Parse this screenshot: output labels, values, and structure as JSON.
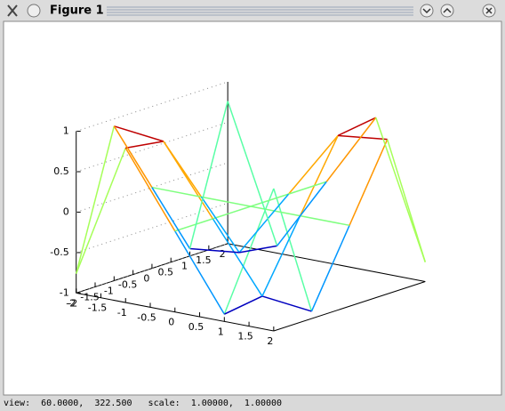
{
  "window": {
    "title": "Figure 1",
    "status": "view:  60.0000,  322.500   scale:  1.00000,  1.00000"
  },
  "chart_data": {
    "type": "surface",
    "colormap": "jet",
    "view": [
      60,
      322.5
    ],
    "x": [
      -2,
      -1,
      0,
      1,
      2
    ],
    "y": [
      -2,
      -1,
      0,
      1,
      2
    ],
    "z": [
      [
        -0.76,
        0.91,
        0,
        -0.91,
        0.76
      ],
      [
        0.91,
        0.84,
        0,
        -0.84,
        -0.91
      ],
      [
        0,
        0,
        0,
        0,
        0
      ],
      [
        -0.91,
        -0.84,
        0,
        0.84,
        0.91
      ],
      [
        0.76,
        -0.91,
        0,
        0.91,
        -0.76
      ]
    ],
    "xlim": [
      -2,
      2
    ],
    "ylim": [
      -2,
      2
    ],
    "zlim": [
      -1,
      1
    ],
    "xticks": [
      -2,
      -1.5,
      -1,
      -0.5,
      0,
      0.5,
      1,
      1.5,
      2
    ],
    "yticks": [
      -2,
      -1.5,
      -1,
      -0.5,
      0,
      0.5,
      1,
      1.5,
      2
    ],
    "zticks": [
      -1,
      -0.5,
      0,
      0.5,
      1
    ]
  }
}
